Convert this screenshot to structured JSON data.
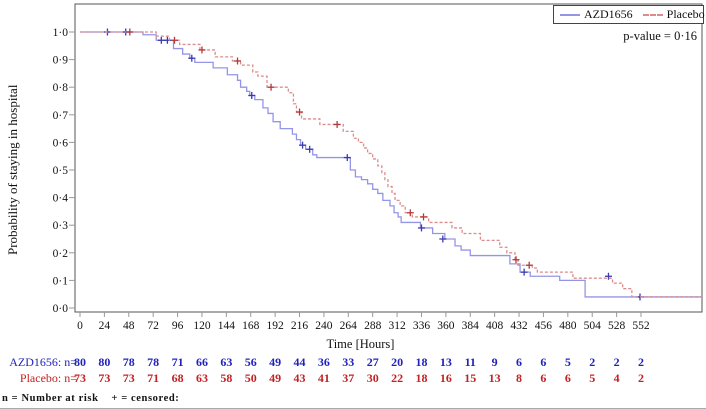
{
  "figure": {
    "p_value_label": "p-value = 0·16",
    "footnote": "n = Number at risk    + = censored:"
  },
  "legend": {
    "position": "top-right",
    "entries": [
      {
        "label": "AZD1656",
        "color": "#9595e8",
        "style": "solid"
      },
      {
        "label": "Placebo",
        "color": "#dc8c8c",
        "style": "dashed"
      }
    ]
  },
  "chart_data": {
    "type": "line",
    "subtype": "kaplan_meier_step",
    "title": "",
    "xlabel": "Time [Hours]",
    "ylabel": "Probability of staying in hospital",
    "xlim": [
      -8,
      612
    ],
    "ylim": [
      0.0,
      1.0
    ],
    "grid": false,
    "x_ticks": [
      0,
      24,
      48,
      72,
      96,
      120,
      144,
      168,
      192,
      216,
      240,
      264,
      288,
      312,
      336,
      360,
      384,
      408,
      432,
      456,
      480,
      504,
      528,
      552
    ],
    "y_ticks": [
      0.0,
      0.1,
      0.2,
      0.3,
      0.4,
      0.5,
      0.6,
      0.7,
      0.8,
      0.9,
      1.0
    ],
    "y_tick_labels": [
      "0·0",
      "0·1",
      "0·2",
      "0·3",
      "0·4",
      "0·5",
      "0·6",
      "0·7",
      "0·8",
      "0·9",
      "1·0"
    ],
    "p_value_label": "p-value = 0·16",
    "series": [
      {
        "name": "AZD1656",
        "style": "solid",
        "color": "#9595e8",
        "censor_color": "#3b3bb0",
        "steps": [
          [
            0,
            1.0
          ],
          [
            62,
            0.99
          ],
          [
            75,
            0.97
          ],
          [
            92,
            0.94
          ],
          [
            101,
            0.92
          ],
          [
            108,
            0.905
          ],
          [
            113,
            0.89
          ],
          [
            131,
            0.87
          ],
          [
            145,
            0.845
          ],
          [
            155,
            0.825
          ],
          [
            158,
            0.8
          ],
          [
            164,
            0.785
          ],
          [
            167,
            0.77
          ],
          [
            172,
            0.755
          ],
          [
            180,
            0.725
          ],
          [
            185,
            0.705
          ],
          [
            190,
            0.675
          ],
          [
            197,
            0.65
          ],
          [
            209,
            0.63
          ],
          [
            213,
            0.61
          ],
          [
            217,
            0.59
          ],
          [
            222,
            0.575
          ],
          [
            229,
            0.555
          ],
          [
            233,
            0.545
          ],
          [
            266,
            0.5
          ],
          [
            271,
            0.475
          ],
          [
            277,
            0.465
          ],
          [
            283,
            0.45
          ],
          [
            288,
            0.43
          ],
          [
            293,
            0.415
          ],
          [
            298,
            0.39
          ],
          [
            305,
            0.37
          ],
          [
            309,
            0.345
          ],
          [
            313,
            0.33
          ],
          [
            316,
            0.31
          ],
          [
            335,
            0.29
          ],
          [
            347,
            0.27
          ],
          [
            359,
            0.25
          ],
          [
            369,
            0.225
          ],
          [
            375,
            0.21
          ],
          [
            384,
            0.19
          ],
          [
            423,
            0.16
          ],
          [
            433,
            0.13
          ],
          [
            443,
            0.115
          ],
          [
            472,
            0.1
          ],
          [
            497,
            0.04
          ],
          [
            612,
            0.04
          ]
        ],
        "censored": [
          [
            27,
            1.0
          ],
          [
            45,
            1.0
          ],
          [
            80,
            0.97
          ],
          [
            86,
            0.97
          ],
          [
            110,
            0.905
          ],
          [
            169,
            0.77
          ],
          [
            219,
            0.59
          ],
          [
            226,
            0.575
          ],
          [
            263,
            0.545
          ],
          [
            336,
            0.29
          ],
          [
            357,
            0.25
          ],
          [
            437,
            0.13
          ],
          [
            520,
            0.115
          ],
          [
            551,
            0.04
          ]
        ]
      },
      {
        "name": "Placebo",
        "style": "dashed",
        "color": "#dc8c8c",
        "censor_color": "#b33a3a",
        "steps": [
          [
            0,
            1.0
          ],
          [
            75,
            0.985
          ],
          [
            88,
            0.97
          ],
          [
            98,
            0.955
          ],
          [
            118,
            0.935
          ],
          [
            133,
            0.91
          ],
          [
            150,
            0.895
          ],
          [
            158,
            0.88
          ],
          [
            170,
            0.855
          ],
          [
            175,
            0.84
          ],
          [
            184,
            0.8
          ],
          [
            205,
            0.78
          ],
          [
            210,
            0.74
          ],
          [
            213,
            0.71
          ],
          [
            218,
            0.685
          ],
          [
            236,
            0.665
          ],
          [
            259,
            0.64
          ],
          [
            269,
            0.615
          ],
          [
            274,
            0.6
          ],
          [
            279,
            0.58
          ],
          [
            283,
            0.56
          ],
          [
            288,
            0.54
          ],
          [
            293,
            0.515
          ],
          [
            297,
            0.49
          ],
          [
            300,
            0.465
          ],
          [
            303,
            0.44
          ],
          [
            307,
            0.415
          ],
          [
            310,
            0.39
          ],
          [
            315,
            0.37
          ],
          [
            320,
            0.345
          ],
          [
            327,
            0.33
          ],
          [
            343,
            0.31
          ],
          [
            366,
            0.29
          ],
          [
            376,
            0.27
          ],
          [
            394,
            0.245
          ],
          [
            413,
            0.22
          ],
          [
            420,
            0.2
          ],
          [
            428,
            0.175
          ],
          [
            431,
            0.155
          ],
          [
            445,
            0.145
          ],
          [
            450,
            0.13
          ],
          [
            485,
            0.108
          ],
          [
            524,
            0.09
          ],
          [
            534,
            0.07
          ],
          [
            543,
            0.04
          ],
          [
            612,
            0.04
          ]
        ],
        "censored": [
          [
            49,
            1.0
          ],
          [
            93,
            0.97
          ],
          [
            120,
            0.935
          ],
          [
            155,
            0.895
          ],
          [
            188,
            0.8
          ],
          [
            216,
            0.71
          ],
          [
            253,
            0.665
          ],
          [
            325,
            0.345
          ],
          [
            338,
            0.33
          ],
          [
            429,
            0.175
          ],
          [
            442,
            0.155
          ]
        ]
      }
    ],
    "risk_table": {
      "times": [
        0,
        24,
        48,
        72,
        96,
        120,
        144,
        168,
        192,
        216,
        240,
        264,
        288,
        312,
        336,
        360,
        384,
        408,
        432,
        456,
        480,
        504,
        528,
        552
      ],
      "rows": [
        {
          "label": "AZD1656: n=",
          "color": "#2222bb",
          "values": [
            80,
            80,
            78,
            78,
            71,
            66,
            63,
            56,
            49,
            44,
            36,
            33,
            27,
            20,
            18,
            13,
            11,
            9,
            6,
            6,
            5,
            2,
            2,
            2
          ]
        },
        {
          "label": "Placebo: n=",
          "color": "#c22222",
          "values": [
            73,
            73,
            73,
            71,
            68,
            63,
            58,
            50,
            49,
            43,
            41,
            37,
            30,
            22,
            18,
            16,
            15,
            13,
            8,
            6,
            6,
            5,
            4,
            2
          ]
        }
      ]
    }
  }
}
